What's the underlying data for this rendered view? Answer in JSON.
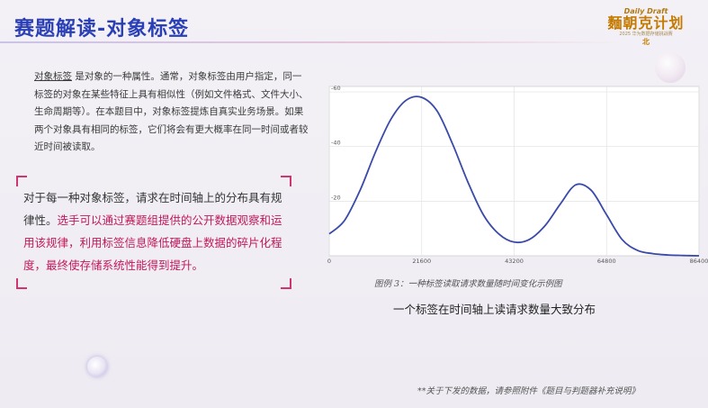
{
  "slide": {
    "title": "赛题解读-对象标签",
    "logo": {
      "line1": "Daily Draft",
      "line2": "麵朝克计划",
      "line3": "2025 华为数据存储挑战赛",
      "line4": "北"
    }
  },
  "intro": {
    "term": "对象标签",
    "body": "是对象的一种属性。通常，对象标签由用户指定，同一标签的对象在某些特征上具有相似性（例如文件格式、文件大小、生命周期等）。在本题目中，对象标签提炼自真实业务场景。如果两个对象具有相同的标签，它们将会有更大概率在同一时间或者较近时间被读取。"
  },
  "highlight": {
    "normal": "对于每一种对象标签，请求在时间轴上的分布具有规律性。",
    "emphasis": "选手可以通过赛题组提供的公开数据观察和运用该规律，利用标签信息降低硬盘上数据的碎片化程度，最终使存储系统性能得到提升。"
  },
  "figure": {
    "caption": "图例 3：一种标签读取请求数量随时间变化示例图",
    "subtitle": "一个标签在时间轴上读请求数量大致分布"
  },
  "footnote": "**关于下发的数据，请参照附件《题目与判题器补充说明》",
  "chart_data": {
    "type": "line",
    "x_ticks": [
      "0",
      "21600",
      "43200",
      "64800",
      "86400"
    ],
    "y_ticks": [
      "-20",
      "-40",
      "-60"
    ],
    "xlim": [
      0,
      86400
    ],
    "ylim": [
      0,
      62
    ],
    "grid": true,
    "line_color": "#3a4aa8",
    "series": [
      {
        "x": [
          0,
          3600,
          7200,
          10800,
          14400,
          18000,
          21600,
          25200,
          28800,
          32400,
          36000,
          39600,
          43200,
          46800,
          50400,
          54000,
          57600,
          61200,
          64800,
          68400,
          72000,
          75600,
          79200,
          82800,
          86400
        ],
        "y": [
          8,
          13,
          24,
          38,
          50,
          57,
          58,
          53,
          41,
          27,
          15,
          8,
          5,
          6,
          11,
          19,
          26,
          24,
          15,
          6,
          2,
          0.8,
          0.3,
          0.1,
          0
        ]
      }
    ]
  }
}
